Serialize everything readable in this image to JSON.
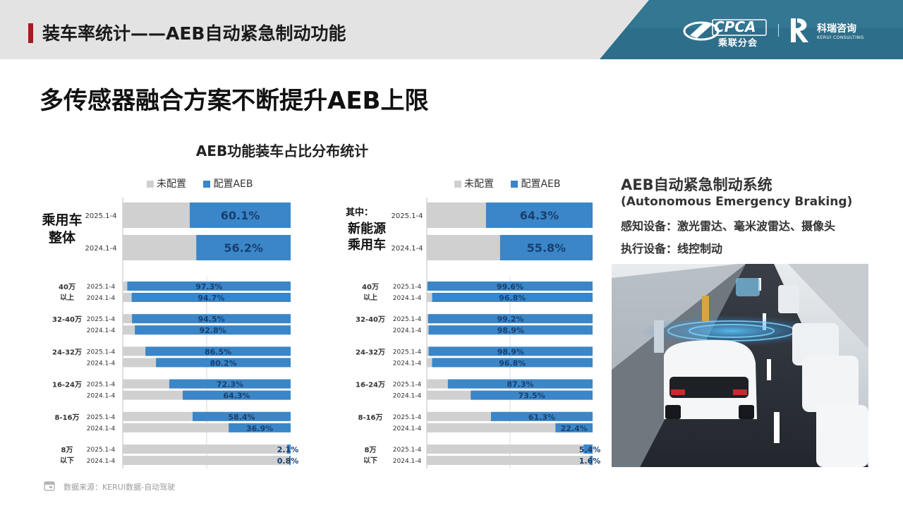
{
  "header": {
    "title": "装车率统计——AEB自动紧急制动功能"
  },
  "logos": {
    "cpca_text": "CPCA",
    "cpca_sub": "乘联分会",
    "kerui_cn": "科瑞咨询",
    "kerui_en": "KERUI CONSULTING"
  },
  "subtitle": "多传感器融合方案不断提升AEB上限",
  "legend": {
    "not_configured": "未配置",
    "configured": "配置AEB"
  },
  "left_group": {
    "label_line1": "乘用车",
    "label_line2": "整体"
  },
  "right_group": {
    "label_line0": "其中：",
    "label_line1": "新能源",
    "label_line2": "乘用车"
  },
  "aeb_info": {
    "title": "AEB自动紧急制动系统",
    "english": "(Autonomous Emergency Braking)",
    "sensing": "感知设备：激光雷达、毫米波雷达、摄像头",
    "actuation": "执行设备：线控制动"
  },
  "footer": {
    "source": "数据来源：KERUI数据-自动驾驶"
  },
  "colors": {
    "not_configured": "#d0d0d0",
    "configured": "#3a86c8",
    "header_bar": "#e3e3e3",
    "accent": "#a51c24",
    "logo_panel": "#2d6e8a"
  },
  "chart_data": {
    "type": "bar",
    "title": "AEB功能装车占比分布统计",
    "orientation": "horizontal-stacked-100",
    "series": [
      {
        "name": "未配置"
      },
      {
        "name": "配置AEB"
      }
    ],
    "panels": [
      {
        "name": "乘用车整体",
        "overall": [
          {
            "period": "2025.1-4",
            "aeb": 60.1,
            "label": "60.1%"
          },
          {
            "period": "2024.1-4",
            "aeb": 56.2,
            "label": "56.2%"
          }
        ],
        "bands": [
          {
            "band_line1": "40万",
            "band_line2": "以上",
            "rows": [
              {
                "period": "2025.1-4",
                "aeb": 97.3,
                "label": "97.3%"
              },
              {
                "period": "2024.1-4",
                "aeb": 94.7,
                "label": "94.7%"
              }
            ]
          },
          {
            "band_line1": "32-40万",
            "band_line2": "",
            "rows": [
              {
                "period": "2025.1-4",
                "aeb": 94.5,
                "label": "94.5%"
              },
              {
                "period": "2024.1-4",
                "aeb": 92.8,
                "label": "92.8%"
              }
            ]
          },
          {
            "band_line1": "24-32万",
            "band_line2": "",
            "rows": [
              {
                "period": "2025.1-4",
                "aeb": 86.5,
                "label": "86.5%"
              },
              {
                "period": "2024.1-4",
                "aeb": 80.2,
                "label": "80.2%"
              }
            ]
          },
          {
            "band_line1": "16-24万",
            "band_line2": "",
            "rows": [
              {
                "period": "2025.1-4",
                "aeb": 72.3,
                "label": "72.3%"
              },
              {
                "period": "2024.1-4",
                "aeb": 64.3,
                "label": "64.3%"
              }
            ]
          },
          {
            "band_line1": "8-16万",
            "band_line2": "",
            "rows": [
              {
                "period": "2025.1-4",
                "aeb": 58.4,
                "label": "58.4%"
              },
              {
                "period": "2024.1-4",
                "aeb": 36.9,
                "label": "36.9%"
              }
            ]
          },
          {
            "band_line1": "8万",
            "band_line2": "以下",
            "rows": [
              {
                "period": "2025.1-4",
                "aeb": 2.1,
                "label": "2.1%"
              },
              {
                "period": "2024.1-4",
                "aeb": 0.8,
                "label": "0.8%"
              }
            ]
          }
        ]
      },
      {
        "name": "新能源乘用车",
        "overall": [
          {
            "period": "2025.1-4",
            "aeb": 64.3,
            "label": "64.3%"
          },
          {
            "period": "2024.1-4",
            "aeb": 55.8,
            "label": "55.8%"
          }
        ],
        "bands": [
          {
            "band_line1": "40万",
            "band_line2": "以上",
            "rows": [
              {
                "period": "2025.1-4",
                "aeb": 99.6,
                "label": "99.6%"
              },
              {
                "period": "2024.1-4",
                "aeb": 96.8,
                "label": "96.8%"
              }
            ]
          },
          {
            "band_line1": "32-40万",
            "band_line2": "",
            "rows": [
              {
                "period": "2025.1-4",
                "aeb": 99.2,
                "label": "99.2%"
              },
              {
                "period": "2024.1-4",
                "aeb": 98.9,
                "label": "98.9%"
              }
            ]
          },
          {
            "band_line1": "24-32万",
            "band_line2": "",
            "rows": [
              {
                "period": "2025.1-4",
                "aeb": 98.9,
                "label": "98.9%"
              },
              {
                "period": "2024.1-4",
                "aeb": 96.8,
                "label": "96.8%"
              }
            ]
          },
          {
            "band_line1": "16-24万",
            "band_line2": "",
            "rows": [
              {
                "period": "2025.1-4",
                "aeb": 87.3,
                "label": "87.3%"
              },
              {
                "period": "2024.1-4",
                "aeb": 73.5,
                "label": "73.5%"
              }
            ]
          },
          {
            "band_line1": "8-16万",
            "band_line2": "",
            "rows": [
              {
                "period": "2025.1-4",
                "aeb": 61.3,
                "label": "61.3%"
              },
              {
                "period": "2024.1-4",
                "aeb": 22.4,
                "label": "22.4%"
              }
            ]
          },
          {
            "band_line1": "8万",
            "band_line2": "以下",
            "rows": [
              {
                "period": "2025.1-4",
                "aeb": 5.4,
                "label": "5.4%"
              },
              {
                "period": "2024.1-4",
                "aeb": 1.6,
                "label": "1.6%"
              }
            ]
          }
        ]
      }
    ],
    "xlim": [
      0,
      100
    ],
    "legend_position": "top-right"
  }
}
